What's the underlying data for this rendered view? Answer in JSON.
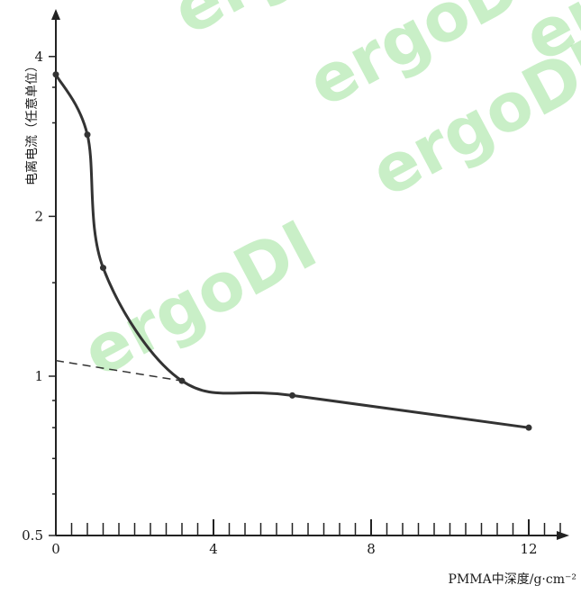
{
  "chart_data": {
    "type": "line",
    "title": "",
    "xlabel": "PMMA中深度/g·cm⁻²",
    "ylabel": "电离电流（任意单位）",
    "xlim": [
      0,
      13
    ],
    "ylim": [
      0.5,
      4.8
    ],
    "y_scale": "log",
    "x_ticks": [
      0,
      4,
      8,
      12
    ],
    "x_tick_labels": [
      "0",
      "4",
      "8",
      "12"
    ],
    "y_ticks": [
      0.5,
      1,
      2,
      4
    ],
    "y_tick_labels": [
      "0.5",
      "1",
      "2",
      "4"
    ],
    "grid": false,
    "series": [
      {
        "values": [
          {
            "x": 0,
            "y": 3.7
          },
          {
            "x": 0.8,
            "y": 2.85
          },
          {
            "x": 1.2,
            "y": 1.6
          },
          {
            "x": 3.2,
            "y": 0.98
          },
          {
            "x": 6,
            "y": 0.92
          },
          {
            "x": 12,
            "y": 0.8
          }
        ]
      }
    ],
    "extrapolation": [
      {
        "x": 0,
        "y": 1.07
      },
      {
        "x": 3.2,
        "y": 0.98
      }
    ],
    "watermark": "ergoDI",
    "watermark_color": "#9ee39a",
    "line_color": "#333333"
  }
}
